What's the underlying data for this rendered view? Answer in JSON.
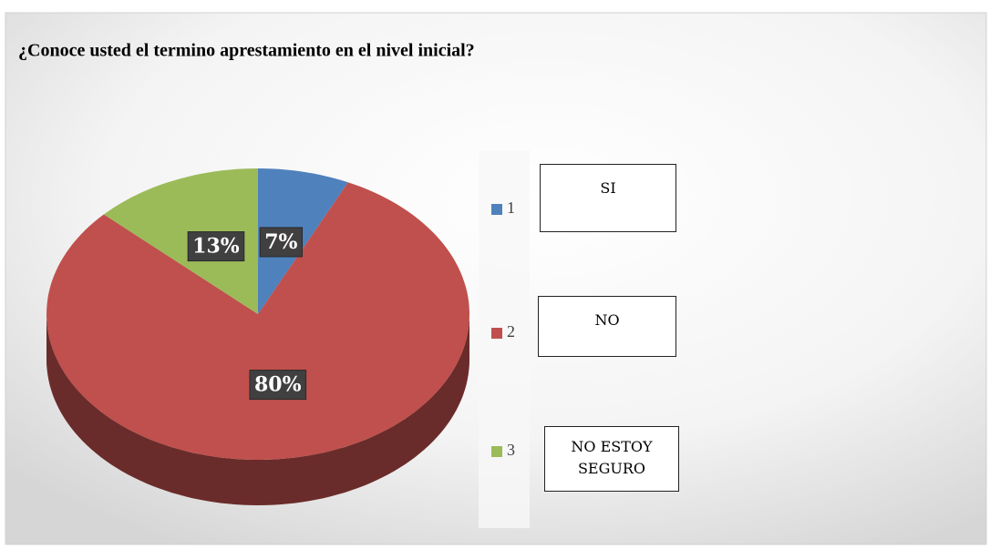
{
  "chart_data": {
    "type": "pie",
    "title": "¿Conoce usted el termino aprestamiento en el nivel inicial?",
    "categories": [
      "1",
      "2",
      "3"
    ],
    "values": [
      7,
      80,
      13
    ],
    "value_labels": [
      "7%",
      "80%",
      "13%"
    ],
    "colors": [
      "#4f81bd",
      "#c0504d",
      "#9bbb59"
    ],
    "annotations": [
      "SI",
      "NO",
      "NO ESTOY SEGURO"
    ],
    "legend": "right"
  }
}
